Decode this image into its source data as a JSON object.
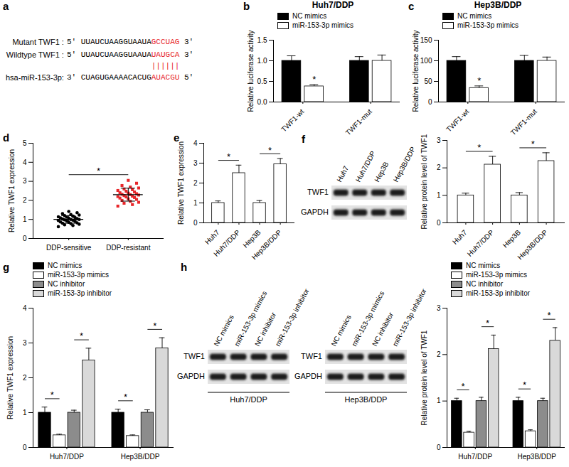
{
  "diagram": {
    "panel": "a",
    "rows": [
      {
        "label": "Mutant TWF1 :",
        "prime5": "5'",
        "sequence": "UUAUCUAAGGUAAUA",
        "site": "GCCUAG",
        "prime3": "3'"
      },
      {
        "label": "Wildtype TWF1 :",
        "prime5": "5'",
        "sequence": "UUAUCUAAGGUAAUA",
        "site": "UAUGCA",
        "prime3": "3'"
      },
      {
        "label": "hsa-miR-153-3p:",
        "prime5": "3'",
        "sequence": "CUAGUGAAAACACUG",
        "site": "AUACGU",
        "prime3": "5'"
      }
    ],
    "pairing": "||||||"
  },
  "blots": [
    {
      "panel": "f",
      "lanes": [
        "Huh7",
        "Huh7/DDP",
        "Hep3B",
        "Hep3B/DDP"
      ],
      "rows": [
        "TWF1",
        "GAPDH"
      ]
    },
    {
      "panel": "h",
      "title": "Huh7/DDP",
      "lanes": [
        "NC mimics",
        "miR-153-3p mimics",
        "NC inhibitor",
        "miR-153-3p inhibitor"
      ],
      "rows": [
        "TWF1",
        "GAPDH"
      ]
    },
    {
      "title": "Hep3B/DDP",
      "lanes": [
        "NC mimics",
        "miR-153-3p mimics",
        "NC inhibitor",
        "miR-153-3p inhibitor"
      ],
      "rows": [
        "TWF1",
        "GAPDH"
      ]
    }
  ],
  "chart_data": [
    {
      "panel": "b",
      "type": "bar",
      "title": "Huh7/DDP",
      "ylabel": "Relative luciferase activity",
      "categories": [
        "TWF1-wt",
        "TWF1-mut"
      ],
      "series": [
        {
          "name": "NC mimics",
          "color": "#000000",
          "values": [
            1.0,
            1.0
          ],
          "errors": [
            0.12,
            0.1
          ]
        },
        {
          "name": "miR-153-3p mimics",
          "color": "#ffffff",
          "values": [
            0.38,
            1.0
          ],
          "errors": [
            0.04,
            0.14
          ]
        }
      ],
      "ylim": [
        0,
        1.5
      ],
      "yticks": [
        {
          "value": 0,
          "label": "0.0"
        },
        0.5,
        {
          "value": 1,
          "label": "1.0"
        },
        1.5
      ],
      "annotations": [
        {
          "text": "*",
          "category": "TWF1-wt",
          "series": "miR-153-3p mimics"
        }
      ]
    },
    {
      "panel": "c",
      "type": "bar",
      "title": "Hep3B/DDP",
      "ylabel": "Relative luciferase activity",
      "categories": [
        "TWF1-wt",
        "TWF1-mut"
      ],
      "series": [
        {
          "name": "NC mimics",
          "color": "#000000",
          "values": [
            100,
            100
          ],
          "errors": [
            10,
            13
          ]
        },
        {
          "name": "miR-153-3p mimics",
          "color": "#ffffff",
          "values": [
            34,
            100
          ],
          "errors": [
            5,
            9
          ]
        }
      ],
      "ylim": [
        0,
        150
      ],
      "yticks": [
        0,
        50,
        100,
        150
      ],
      "annotations": [
        {
          "text": "*",
          "category": "TWF1-wt",
          "series": "miR-153-3p mimics"
        }
      ]
    },
    {
      "panel": "d",
      "type": "scatter",
      "ylabel": "Relative TWF1 expression",
      "categories": [
        "DDP-sensitive",
        "DDP-resistant"
      ],
      "colors": [
        "#000000",
        "#e8262a"
      ],
      "markers": [
        "circle",
        "square"
      ],
      "points": [
        [
          0.62,
          0.68,
          0.72,
          0.75,
          0.78,
          0.8,
          0.82,
          0.85,
          0.87,
          0.9,
          0.92,
          0.94,
          0.96,
          0.98,
          1.0,
          1.0,
          1.02,
          1.04,
          1.06,
          1.08,
          1.1,
          1.12,
          1.14,
          1.17,
          1.2,
          1.23,
          1.26,
          1.3,
          1.35,
          1.42
        ],
        [
          1.7,
          1.78,
          1.85,
          1.9,
          1.95,
          2.0,
          2.05,
          2.08,
          2.12,
          2.15,
          2.18,
          2.2,
          2.22,
          2.25,
          2.28,
          2.3,
          2.32,
          2.35,
          2.38,
          2.4,
          2.44,
          2.48,
          2.52,
          2.56,
          2.6,
          2.65,
          2.7,
          2.78,
          2.9,
          3.05
        ]
      ],
      "mean": [
        1.0,
        2.3
      ],
      "sd": [
        0.2,
        0.34
      ],
      "ylim": [
        0,
        5
      ],
      "yticks": [
        0,
        1,
        2,
        3,
        4,
        5
      ],
      "annotations": [
        {
          "text": "*",
          "pair": [
            "DDP-sensitive",
            "DDP-resistant"
          ]
        }
      ]
    },
    {
      "panel": "e",
      "type": "bar",
      "ylabel": "Relative TWF1 expression",
      "categories": [
        "Huh7",
        "Huh7/DDP",
        "Hep3B",
        "Hep3B/DDP"
      ],
      "color": "#ffffff",
      "values": [
        1.0,
        2.5,
        1.0,
        2.95
      ],
      "errors": [
        0.1,
        0.4,
        0.12,
        0.28
      ],
      "ylim": [
        0,
        4
      ],
      "yticks": [
        0,
        1,
        2,
        3,
        4
      ],
      "annotations": [
        {
          "text": "*",
          "pair": [
            "Huh7",
            "Huh7/DDP"
          ]
        },
        {
          "text": "*",
          "pair": [
            "Hep3B",
            "Hep3B/DDP"
          ]
        }
      ]
    },
    {
      "type": "bar",
      "ylabel": "Relative protein level of TWF1",
      "categories": [
        "Huh7",
        "Huh7/DDP",
        "Hep3B",
        "Hep3B/DDP"
      ],
      "color": "#ffffff",
      "values": [
        1.0,
        2.12,
        1.0,
        2.25
      ],
      "errors": [
        0.08,
        0.3,
        0.1,
        0.3
      ],
      "ylim": [
        0,
        3
      ],
      "yticks": [
        0,
        1,
        2,
        3
      ],
      "annotations": [
        {
          "text": "*",
          "pair": [
            "Huh7",
            "Huh7/DDP"
          ]
        },
        {
          "text": "*",
          "pair": [
            "Hep3B",
            "Hep3B/DDP"
          ]
        }
      ]
    },
    {
      "panel": "g",
      "type": "bar",
      "ylabel": "Relative TWF1 expression",
      "categories": [
        "Huh7/DDP",
        "Hep3B/DDP"
      ],
      "series": [
        {
          "name": "NC mimics",
          "color": "#000000",
          "values": [
            1.0,
            1.0
          ],
          "errors": [
            0.16,
            0.1
          ]
        },
        {
          "name": "miR-153-3p mimics",
          "color": "#ffffff",
          "values": [
            0.35,
            0.33
          ],
          "errors": [
            0.03,
            0.03
          ]
        },
        {
          "name": "NC inhibitor",
          "color": "#8c8c8c",
          "values": [
            1.0,
            1.0
          ],
          "errors": [
            0.07,
            0.08
          ]
        },
        {
          "name": "miR-153-3p inhibitor",
          "color": "#d9d9d9",
          "values": [
            2.5,
            2.85
          ],
          "errors": [
            0.35,
            0.3
          ]
        }
      ],
      "ylim": [
        0,
        4
      ],
      "yticks": [
        0,
        1,
        2,
        3,
        4
      ],
      "annotations": [
        {
          "text": "*",
          "category": "Huh7/DDP",
          "pair": [
            "NC mimics",
            "miR-153-3p mimics"
          ]
        },
        {
          "text": "*",
          "category": "Huh7/DDP",
          "pair": [
            "NC inhibitor",
            "miR-153-3p inhibitor"
          ]
        },
        {
          "text": "*",
          "category": "Hep3B/DDP",
          "pair": [
            "NC mimics",
            "miR-153-3p mimics"
          ]
        },
        {
          "text": "*",
          "category": "Hep3B/DDP",
          "pair": [
            "NC inhibitor",
            "miR-153-3p inhibitor"
          ]
        }
      ]
    },
    {
      "type": "bar",
      "ylabel": "Relative protein level of TWF1",
      "categories": [
        "Huh7/DDP",
        "Hep3B/DDP"
      ],
      "series": [
        {
          "name": "NC mimics",
          "color": "#000000",
          "values": [
            1.0,
            1.0
          ],
          "errors": [
            0.06,
            0.08
          ]
        },
        {
          "name": "miR-153-3p mimics",
          "color": "#ffffff",
          "values": [
            0.32,
            0.35
          ],
          "errors": [
            0.03,
            0.03
          ]
        },
        {
          "name": "NC inhibitor",
          "color": "#8c8c8c",
          "values": [
            1.0,
            1.0
          ],
          "errors": [
            0.08,
            0.06
          ]
        },
        {
          "name": "miR-153-3p inhibitor",
          "color": "#d9d9d9",
          "values": [
            2.12,
            2.3
          ],
          "errors": [
            0.3,
            0.28
          ]
        }
      ],
      "ylim": [
        0,
        3
      ],
      "yticks": [
        0,
        1,
        2,
        3
      ],
      "annotations": [
        {
          "text": "*",
          "category": "Huh7/DDP",
          "pair": [
            "NC mimics",
            "miR-153-3p mimics"
          ]
        },
        {
          "text": "*",
          "category": "Huh7/DDP",
          "pair": [
            "NC inhibitor",
            "miR-153-3p inhibitor"
          ]
        },
        {
          "text": "*",
          "category": "Hep3B/DDP",
          "pair": [
            "NC mimics",
            "miR-153-3p mimics"
          ]
        },
        {
          "text": "*",
          "category": "Hep3B/DDP",
          "pair": [
            "NC inhibitor",
            "miR-153-3p inhibitor"
          ]
        }
      ]
    }
  ]
}
